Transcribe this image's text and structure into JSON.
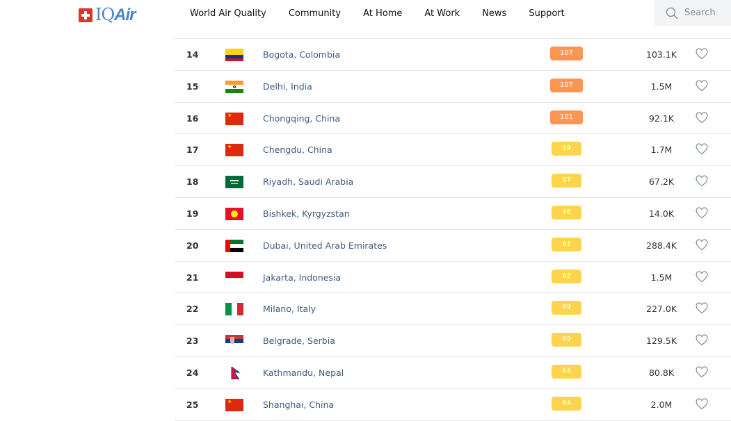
{
  "header": {
    "logo": "IQAir",
    "nav": [
      "World Air Quality",
      "Community",
      "At Home",
      "At Work",
      "News",
      "Support"
    ],
    "search_placeholder": "Search"
  },
  "colors": {
    "orange": "#fe9553",
    "yellow": "#fcd54c",
    "link": "#3e5a7e"
  },
  "rows": [
    {
      "rank": "14",
      "city": "Bogota, Colombia",
      "aqi": "107",
      "level": "o",
      "followers": "103.1K",
      "flag": "colombia"
    },
    {
      "rank": "15",
      "city": "Delhi, India",
      "aqi": "107",
      "level": "o",
      "followers": "1.5M",
      "flag": "india"
    },
    {
      "rank": "16",
      "city": "Chongqing, China",
      "aqi": "101",
      "level": "o",
      "followers": "92.1K",
      "flag": "china"
    },
    {
      "rank": "17",
      "city": "Chengdu, China",
      "aqi": "99",
      "level": "y",
      "followers": "1.7M",
      "flag": "china"
    },
    {
      "rank": "18",
      "city": "Riyadh, Saudi Arabia",
      "aqi": "97",
      "level": "y",
      "followers": "67.2K",
      "flag": "saudi"
    },
    {
      "rank": "19",
      "city": "Bishkek, Kyrgyzstan",
      "aqi": "96",
      "level": "y",
      "followers": "14.0K",
      "flag": "kyrgyz"
    },
    {
      "rank": "20",
      "city": "Dubai, United Arab Emirates",
      "aqi": "93",
      "level": "y",
      "followers": "288.4K",
      "flag": "uae"
    },
    {
      "rank": "21",
      "city": "Jakarta, Indonesia",
      "aqi": "92",
      "level": "y",
      "followers": "1.5M",
      "flag": "indonesia"
    },
    {
      "rank": "22",
      "city": "Milano, Italy",
      "aqi": "89",
      "level": "y",
      "followers": "227.0K",
      "flag": "italy"
    },
    {
      "rank": "23",
      "city": "Belgrade, Serbia",
      "aqi": "89",
      "level": "y",
      "followers": "129.5K",
      "flag": "serbia"
    },
    {
      "rank": "24",
      "city": "Kathmandu, Nepal",
      "aqi": "84",
      "level": "y",
      "followers": "80.8K",
      "flag": "nepal"
    },
    {
      "rank": "25",
      "city": "Shanghai, China",
      "aqi": "84",
      "level": "y",
      "followers": "2.0M",
      "flag": "china"
    }
  ]
}
